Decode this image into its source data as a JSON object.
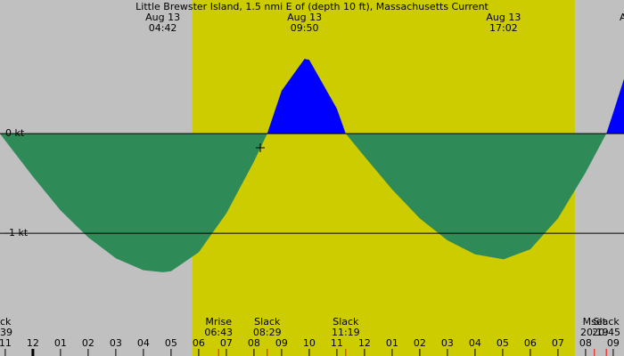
{
  "chart_data": {
    "type": "area",
    "title": "Little Brewster Island, 1.5 nmi E of (depth 10 ft), Massachusetts Current",
    "x": [
      -1.19,
      -1,
      0,
      1,
      2,
      3,
      4,
      4.7,
      5,
      6,
      7,
      8,
      8.48,
      9,
      9.83,
      10,
      11,
      11.32,
      12,
      13,
      14,
      15,
      16,
      17.03,
      18,
      19,
      20,
      20.75,
      21,
      21.39
    ],
    "series": [
      {
        "values": [
          0,
          -0.07,
          -0.43,
          -0.77,
          -1.04,
          -1.25,
          -1.37,
          -1.39,
          -1.38,
          -1.19,
          -0.8,
          -0.28,
          0,
          0.43,
          0.75,
          0.74,
          0.25,
          0,
          -0.23,
          -0.56,
          -0.85,
          -1.07,
          -1.21,
          -1.26,
          -1.16,
          -0.85,
          -0.39,
          0,
          0.21,
          0.55
        ]
      }
    ],
    "positive_color": "#0000ff",
    "negative_color": "#2e8b57",
    "daylight": [
      5.77,
      19.61
    ],
    "daylight_color": "#cccc00",
    "night_color": "#c0c0c0",
    "xlim": [
      -1.19,
      21.39
    ],
    "xticks": [
      {
        "value": -1,
        "label": "11"
      },
      {
        "value": 0,
        "label": "12"
      },
      {
        "value": 1,
        "label": "01"
      },
      {
        "value": 2,
        "label": "02"
      },
      {
        "value": 3,
        "label": "03"
      },
      {
        "value": 4,
        "label": "04"
      },
      {
        "value": 5,
        "label": "05"
      },
      {
        "value": 6,
        "label": "06"
      },
      {
        "value": 7,
        "label": "07"
      },
      {
        "value": 8,
        "label": "08"
      },
      {
        "value": 9,
        "label": "09"
      },
      {
        "value": 10,
        "label": "10"
      },
      {
        "value": 11,
        "label": "11"
      },
      {
        "value": 12,
        "label": "12"
      },
      {
        "value": 13,
        "label": "01"
      },
      {
        "value": 14,
        "label": "02"
      },
      {
        "value": 15,
        "label": "03"
      },
      {
        "value": 16,
        "label": "04"
      },
      {
        "value": 17,
        "label": "05"
      },
      {
        "value": 18,
        "label": "06"
      },
      {
        "value": 19,
        "label": "07"
      },
      {
        "value": 20,
        "label": "08"
      },
      {
        "value": 21,
        "label": "09"
      }
    ],
    "ylim": [
      -2.23,
      1.34
    ],
    "yticks": [
      {
        "value": 0,
        "label": "0 kt"
      },
      {
        "value": -1,
        "label": "-1 kt"
      }
    ],
    "extremes": [
      {
        "x": 4.7,
        "date": "Aug 13",
        "time": "04:42"
      },
      {
        "x": 9.83,
        "date": "Aug 13",
        "time": "09:50"
      },
      {
        "x": 17.03,
        "date": "Aug 13",
        "time": "17:02"
      }
    ],
    "edge_top": "A",
    "events": [
      {
        "x": 6.72,
        "label": "Mrise",
        "time": "06:43"
      },
      {
        "x": 8.48,
        "label": "Slack",
        "time": "08:29"
      },
      {
        "x": 11.32,
        "label": "Slack",
        "time": "11:19"
      },
      {
        "x": 20.32,
        "label": "Mset",
        "time": "20:19"
      },
      {
        "x": 20.75,
        "label": "Slack",
        "time": "20:45"
      }
    ],
    "edge_event": {
      "label": "ck",
      "time": "39"
    }
  }
}
